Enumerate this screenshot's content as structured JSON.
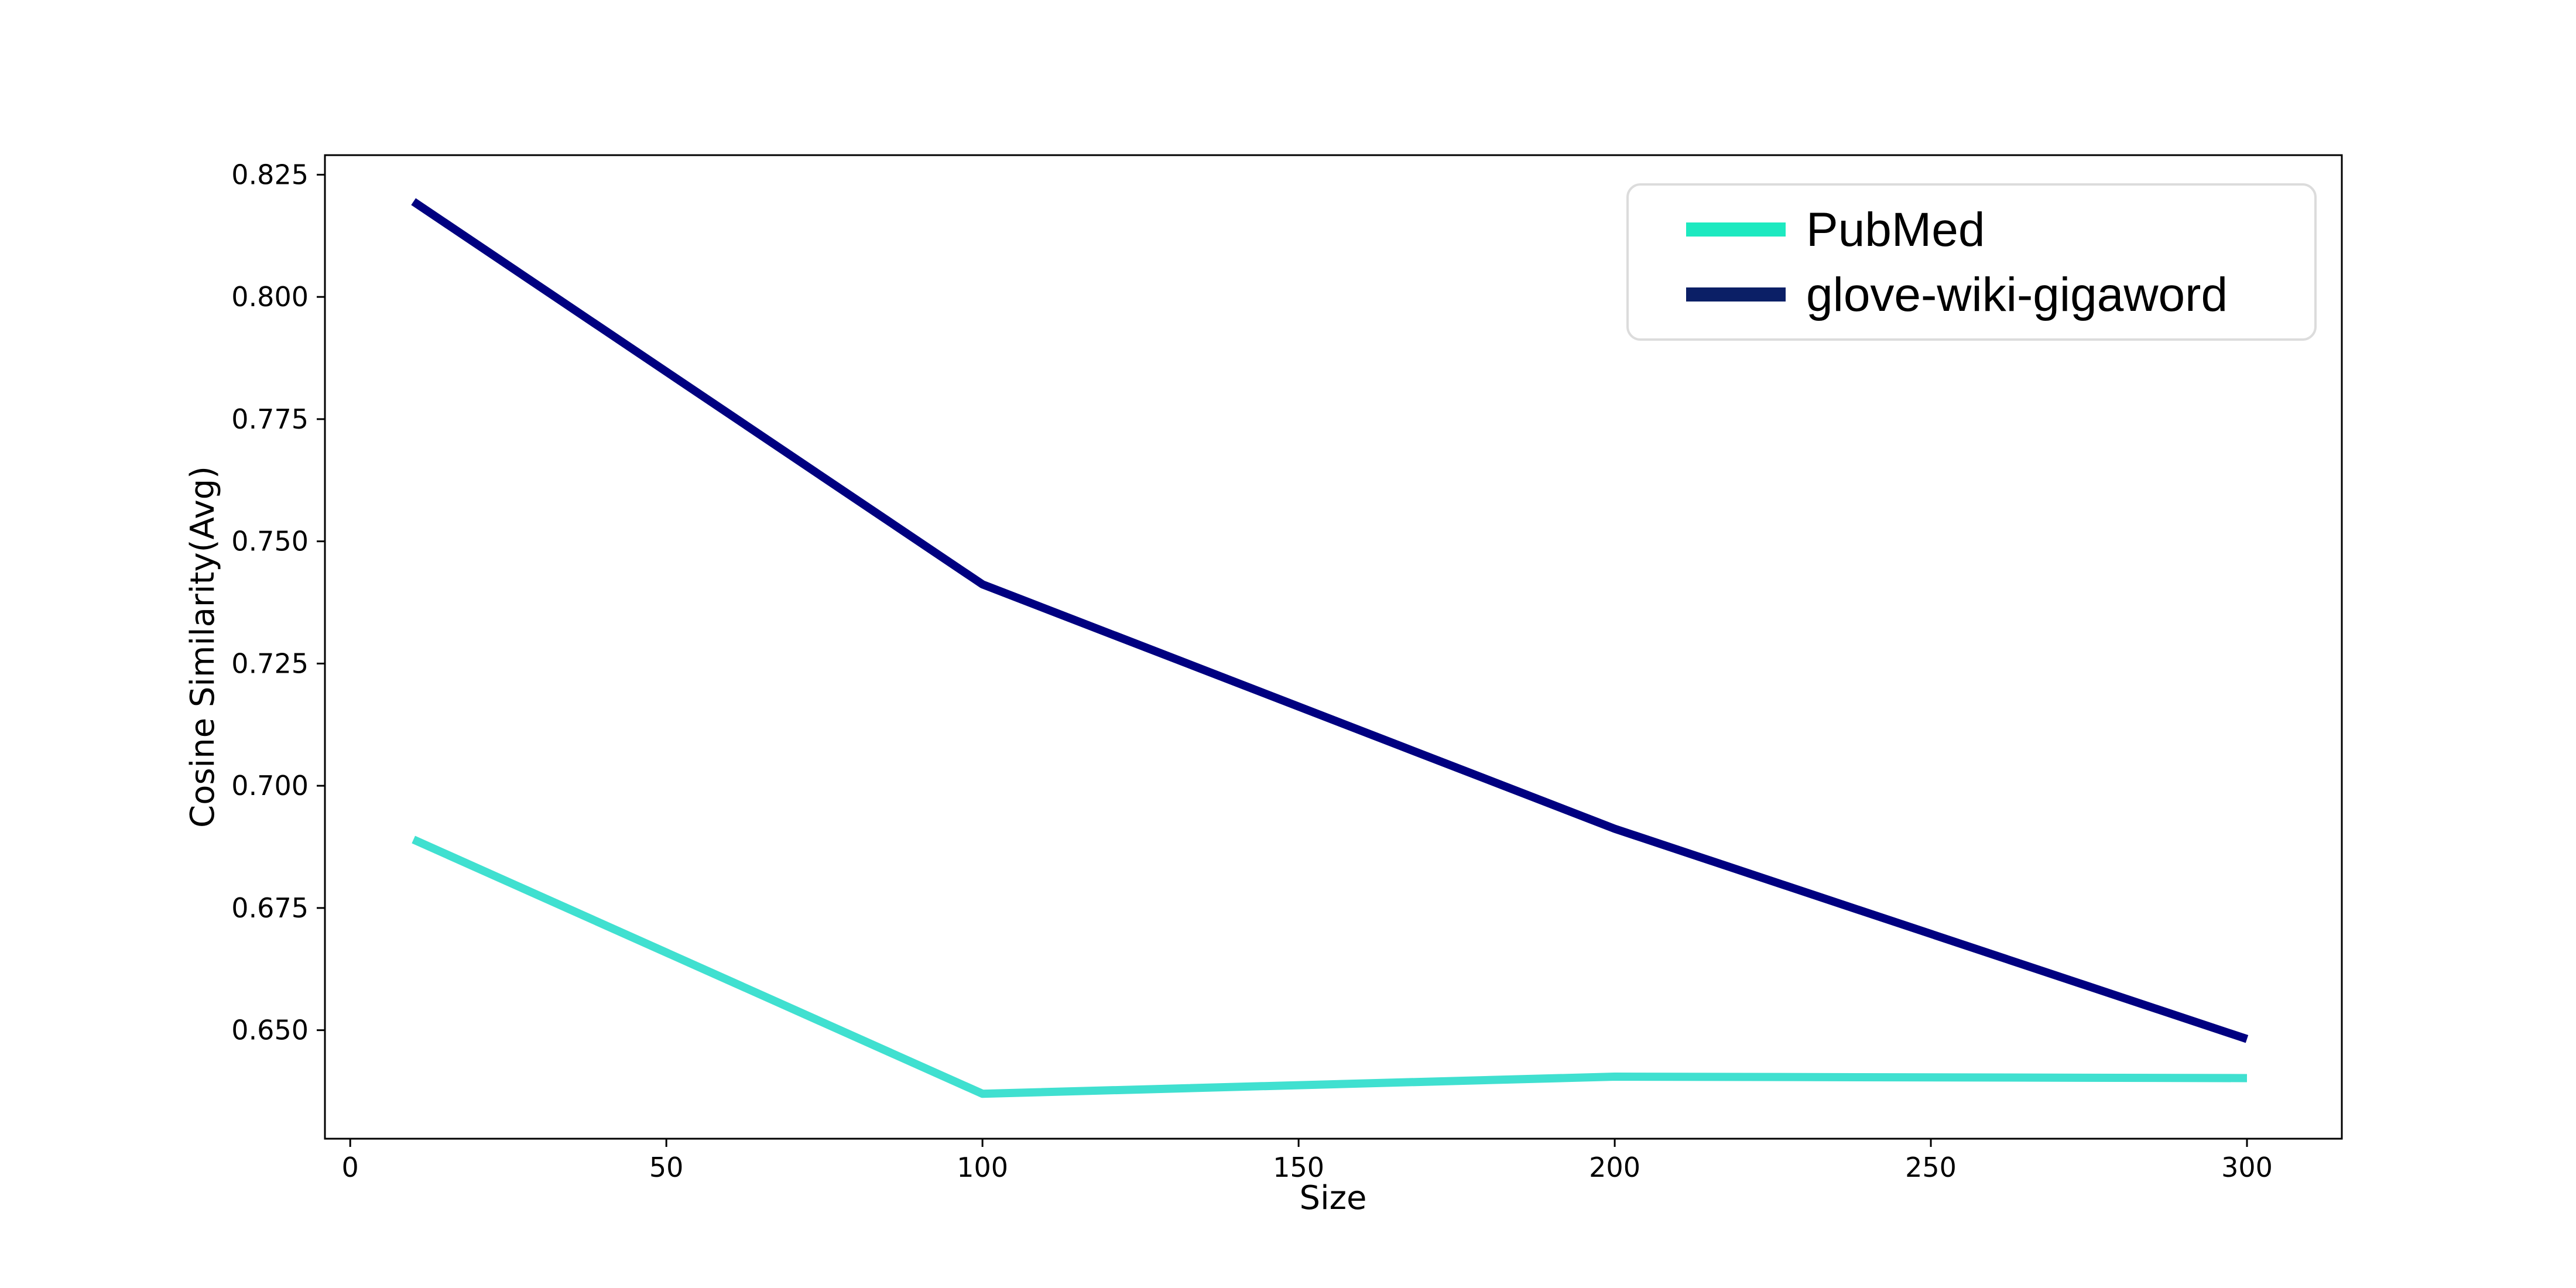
{
  "chart_data": {
    "type": "line",
    "xlabel": "Size",
    "ylabel": "Cosine Similarity(Avg)",
    "x": [
      10,
      100,
      200,
      300
    ],
    "xlim": [
      -4,
      315
    ],
    "ylim": [
      0.6278,
      0.829
    ],
    "xticks": [
      0,
      50,
      100,
      150,
      200,
      250,
      300
    ],
    "yticks": [
      0.65,
      0.675,
      0.7,
      0.725,
      0.75,
      0.775,
      0.8,
      0.825
    ],
    "ytick_labels": [
      "0.650",
      "0.675",
      "0.700",
      "0.725",
      "0.750",
      "0.775",
      "0.800",
      "0.825"
    ],
    "grid": false,
    "legend_position": "top-right",
    "series": [
      {
        "name": "PubMed",
        "color": "#40e0d0",
        "legend_color": "#1de9c0",
        "values": [
          0.689,
          0.637,
          0.6405,
          0.6402
        ]
      },
      {
        "name": "glove-wiki-gigaword",
        "color": "#000080",
        "legend_color": "#0b1f66",
        "values": [
          0.8195,
          0.7412,
          0.6912,
          0.6482
        ]
      }
    ]
  }
}
